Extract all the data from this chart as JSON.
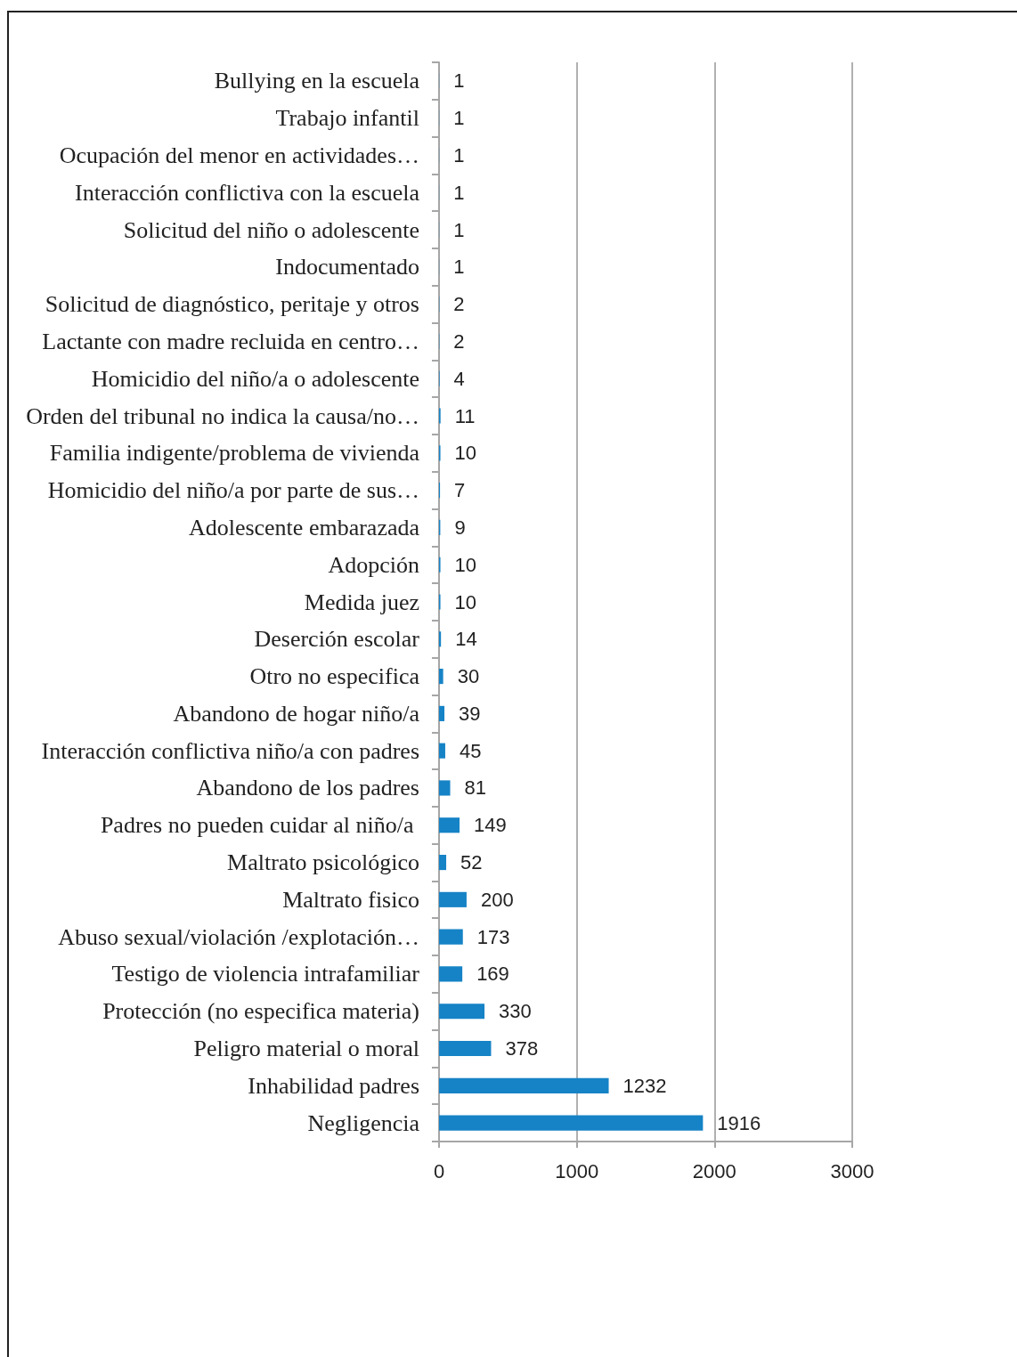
{
  "chart_data": {
    "type": "bar",
    "orientation": "horizontal",
    "categories": [
      "Bullying en la escuela",
      "Trabajo infantil",
      "Ocupación del menor en actividades…",
      "Interacción conflictiva con la escuela",
      "Solicitud del niño o adolescente",
      "Indocumentado",
      "Solicitud de diagnóstico, peritaje y otros",
      "Lactante con madre recluida en centro…",
      "Homicidio del niño/a o adolescente",
      "Orden del tribunal no indica la causa/no…",
      "Familia indigente/problema de vivienda",
      "Homicidio del niño/a por parte de sus…",
      "Adolescente embarazada",
      "Adopción",
      "Medida juez",
      "Deserción escolar",
      "Otro no especifica",
      "Abandono de hogar niño/a",
      "Interacción conflictiva niño/a con padres",
      "Abandono de los padres",
      "Padres no pueden cuidar al niño/a ",
      "Maltrato psicológico",
      "Maltrato fisico",
      "Abuso sexual/violación /explotación…",
      "Testigo de violencia intrafamiliar",
      "Protección (no especifica materia)",
      "Peligro material o moral",
      "Inhabilidad padres",
      "Negligencia"
    ],
    "values": [
      1,
      1,
      1,
      1,
      1,
      1,
      2,
      2,
      4,
      11,
      10,
      7,
      9,
      10,
      10,
      14,
      30,
      39,
      45,
      81,
      149,
      52,
      200,
      173,
      169,
      330,
      378,
      1232,
      1916
    ],
    "color": "#1683c6",
    "xlim": [
      0,
      3000
    ],
    "xticks": [
      0,
      1000,
      2000,
      3000
    ],
    "grid": "x",
    "data_labels": true
  }
}
